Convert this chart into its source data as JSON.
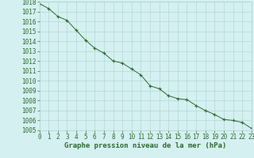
{
  "x": [
    0,
    1,
    2,
    3,
    4,
    5,
    6,
    7,
    8,
    9,
    10,
    11,
    12,
    13,
    14,
    15,
    16,
    17,
    18,
    19,
    20,
    21,
    22,
    23
  ],
  "y": [
    1017.8,
    1017.3,
    1016.5,
    1016.1,
    1015.1,
    1014.1,
    1013.3,
    1012.8,
    1012.0,
    1011.8,
    1011.2,
    1010.6,
    1009.5,
    1009.2,
    1008.5,
    1008.2,
    1008.1,
    1007.5,
    1007.0,
    1006.6,
    1006.1,
    1006.0,
    1005.8,
    1005.2
  ],
  "line_color": "#2d6a2d",
  "marker": "+",
  "marker_size": 3,
  "marker_color": "#2d6a2d",
  "bg_color": "#d4f0f0",
  "grid_color": "#b0d0d0",
  "tick_label_color": "#2d6a2d",
  "xlabel": "Graphe pression niveau de la mer (hPa)",
  "xlabel_color": "#2d6a2d",
  "xlabel_fontsize": 6.5,
  "tick_fontsize": 5.5,
  "ylim_min": 1005,
  "ylim_max": 1018,
  "xlim_min": 0,
  "xlim_max": 23
}
